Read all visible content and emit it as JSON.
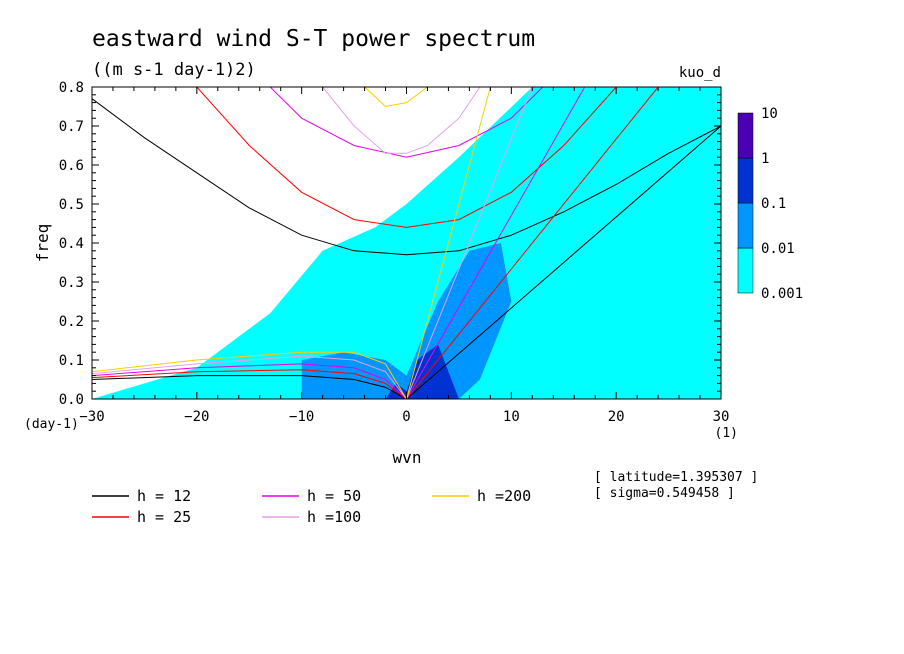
{
  "chart_data": {
    "type": "heatmap",
    "title": "eastward wind S-T power spectrum",
    "subtitle": "((m s-1 day-1)2)",
    "tag": "kuo_d",
    "xlabel": "wvn",
    "ylabel": "freq",
    "x_unit": "(1)",
    "y_unit": "(day-1)",
    "xlim": [
      -30,
      30
    ],
    "ylim": [
      0,
      0.8
    ],
    "xticks": [
      -30,
      -20,
      -10,
      0,
      10,
      20,
      30
    ],
    "yticks": [
      0,
      0.1,
      0.2,
      0.3,
      0.4,
      0.5,
      0.6,
      0.7,
      0.8
    ],
    "colorbar": {
      "levels": [
        "0.001",
        "0.01",
        "0.1",
        "1",
        "10"
      ],
      "colors": [
        "#00ffff",
        "#0096ff",
        "#0032d2",
        "#4b00b4"
      ]
    },
    "contour_regions": [
      {
        "level": "0.001",
        "x": [
          -30,
          -20,
          -13,
          -8,
          -3,
          0,
          5,
          12,
          20,
          30,
          30,
          12,
          6,
          4,
          0,
          -4,
          -10,
          -30
        ],
        "y": [
          0.0,
          0.08,
          0.22,
          0.38,
          0.44,
          0.5,
          0.62,
          0.8,
          0.8,
          0.8,
          0.0,
          0.0,
          0.0,
          0.0,
          0.0,
          0.0,
          0.0,
          0.0
        ]
      },
      {
        "level": "0.01",
        "x": [
          -10,
          -6,
          -2,
          0,
          3,
          6,
          9,
          10,
          7,
          5,
          3,
          0,
          -4,
          -10
        ],
        "y": [
          0.1,
          0.12,
          0.1,
          0.06,
          0.25,
          0.38,
          0.4,
          0.25,
          0.05,
          0.0,
          0.0,
          0.0,
          0.0,
          0.0
        ]
      },
      {
        "level": "0.1",
        "x": [
          -2,
          -1,
          0,
          1,
          3,
          5,
          3,
          1,
          0
        ],
        "y": [
          0.0,
          0.04,
          0.02,
          0.1,
          0.14,
          0.0,
          0.0,
          0.0,
          0.0
        ]
      }
    ],
    "dispersion_curves": [
      {
        "name": "h = 12",
        "color": "#000000",
        "x": [
          -30,
          -25,
          -20,
          -15,
          -10,
          -5,
          0,
          5,
          10,
          15,
          20,
          25,
          30
        ],
        "y": [
          0.77,
          0.67,
          0.58,
          0.49,
          0.42,
          0.38,
          0.37,
          0.38,
          0.42,
          0.48,
          0.55,
          0.63,
          0.7
        ]
      },
      {
        "name": "h = 25",
        "color": "#ff0000",
        "x": [
          -20,
          -15,
          -10,
          -5,
          0,
          5,
          10,
          15,
          20
        ],
        "y": [
          0.8,
          0.65,
          0.53,
          0.46,
          0.44,
          0.46,
          0.53,
          0.65,
          0.8
        ]
      },
      {
        "name": "h = 50",
        "color": "#e600e6",
        "x": [
          -13,
          -10,
          -5,
          0,
          5,
          10,
          13
        ],
        "y": [
          0.8,
          0.72,
          0.65,
          0.62,
          0.65,
          0.72,
          0.8
        ]
      },
      {
        "name": "h =100",
        "color": "#e6a0e6",
        "x": [
          -8,
          -5,
          -2,
          0,
          2,
          5,
          7
        ],
        "y": [
          0.8,
          0.7,
          0.63,
          0.63,
          0.65,
          0.72,
          0.8
        ]
      },
      {
        "name": "h =200",
        "color": "#ffcc00",
        "x": [
          -4,
          -2,
          0,
          2
        ],
        "y": [
          0.8,
          0.75,
          0.76,
          0.8
        ]
      }
    ],
    "kelvin_lines": [
      {
        "name": "h = 12",
        "color": "#000000",
        "x": [
          0,
          30
        ],
        "y": [
          0,
          0.7
        ]
      },
      {
        "name": "h = 25",
        "color": "#ff0000",
        "x": [
          0,
          24
        ],
        "y": [
          0,
          0.8
        ]
      },
      {
        "name": "h = 50",
        "color": "#e600e6",
        "x": [
          0,
          17
        ],
        "y": [
          0,
          0.8
        ]
      },
      {
        "name": "h =100",
        "color": "#e6a0e6",
        "x": [
          0,
          12
        ],
        "y": [
          0,
          0.8
        ]
      },
      {
        "name": "h =200",
        "color": "#ffcc00",
        "x": [
          0,
          8
        ],
        "y": [
          0,
          0.8
        ]
      }
    ],
    "rossby_curves": [
      {
        "name": "h = 12",
        "color": "#000000",
        "x": [
          -30,
          -20,
          -10,
          -5,
          -2,
          0
        ],
        "y": [
          0.05,
          0.06,
          0.06,
          0.05,
          0.03,
          0.0
        ]
      },
      {
        "name": "h = 25",
        "color": "#ff0000",
        "x": [
          -30,
          -20,
          -10,
          -5,
          -2,
          0
        ],
        "y": [
          0.055,
          0.07,
          0.075,
          0.065,
          0.04,
          0.0
        ]
      },
      {
        "name": "h = 50",
        "color": "#e600e6",
        "x": [
          -30,
          -20,
          -10,
          -5,
          -2,
          0
        ],
        "y": [
          0.06,
          0.08,
          0.09,
          0.08,
          0.05,
          0.0
        ]
      },
      {
        "name": "h =100",
        "color": "#e6a0e6",
        "x": [
          -30,
          -20,
          -10,
          -5,
          -2,
          0
        ],
        "y": [
          0.065,
          0.09,
          0.11,
          0.1,
          0.07,
          0.0
        ]
      },
      {
        "name": "h =200",
        "color": "#ffcc00",
        "x": [
          -30,
          -20,
          -10,
          -5,
          -2,
          0
        ],
        "y": [
          0.07,
          0.1,
          0.12,
          0.12,
          0.09,
          0.0
        ]
      }
    ],
    "legend": [
      {
        "label": "h = 12",
        "color": "#000000"
      },
      {
        "label": "h = 25",
        "color": "#ff0000"
      },
      {
        "label": "h = 50",
        "color": "#e600e6"
      },
      {
        "label": "h =100",
        "color": "#e6a0e6"
      },
      {
        "label": "h =200",
        "color": "#ffcc00"
      }
    ],
    "info": [
      "[ latitude=1.395307 ]",
      "[ sigma=0.549458 ]"
    ]
  }
}
